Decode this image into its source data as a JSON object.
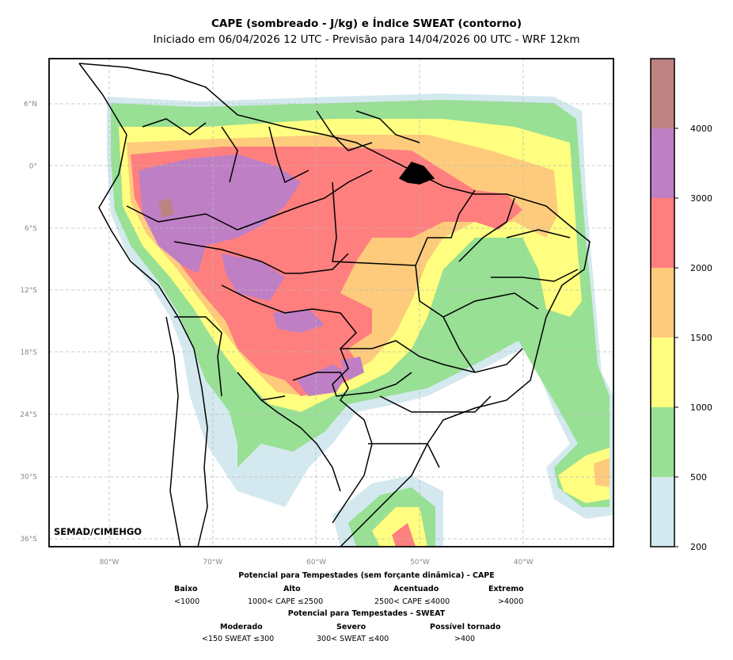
{
  "title": "CAPE (sombreado - J/kg) e Índice SWEAT (contorno)",
  "subtitle": "Iniciado em 06/04/2026 12 UTC - Previsão para 14/04/2026 00 UTC - WRF 12km",
  "credit": "SEMAD/CIMEHGO",
  "lat_ticks": [
    "6°N",
    "0°",
    "6°S",
    "12°S",
    "18°S",
    "24°S",
    "30°S",
    "36°S"
  ],
  "lon_ticks": [
    "80°W",
    "70°W",
    "60°W",
    "50°W",
    "40°W"
  ],
  "colorbar": {
    "levels": [
      "200",
      "500",
      "1000",
      "1500",
      "2000",
      "3000",
      "4000"
    ],
    "colors": [
      "#d4e9ef",
      "#98e094",
      "#fffe80",
      "#fecb7c",
      "#fe7f7e",
      "#bf7fc5",
      "#bd8382"
    ]
  },
  "legend": {
    "cape_title": "Potencial para Tempestades (sem forçante dinâmica) - CAPE",
    "cape_categories": [
      {
        "label": "Baixo",
        "range": "<1000"
      },
      {
        "label": "Alto",
        "range": "1000< CAPE ≤2500"
      },
      {
        "label": "Acentuado",
        "range": "2500< CAPE ≤4000"
      },
      {
        "label": "Extremo",
        "range": ">4000"
      }
    ],
    "sweat_title": "Potencial para Tempestades - SWEAT",
    "sweat_categories": [
      {
        "label": "Moderado",
        "range": "<150 SWEAT ≤300"
      },
      {
        "label": "Severo",
        "range": "300< SWEAT ≤400"
      },
      {
        "label": "Possível tornado",
        "range": ">400"
      }
    ]
  }
}
